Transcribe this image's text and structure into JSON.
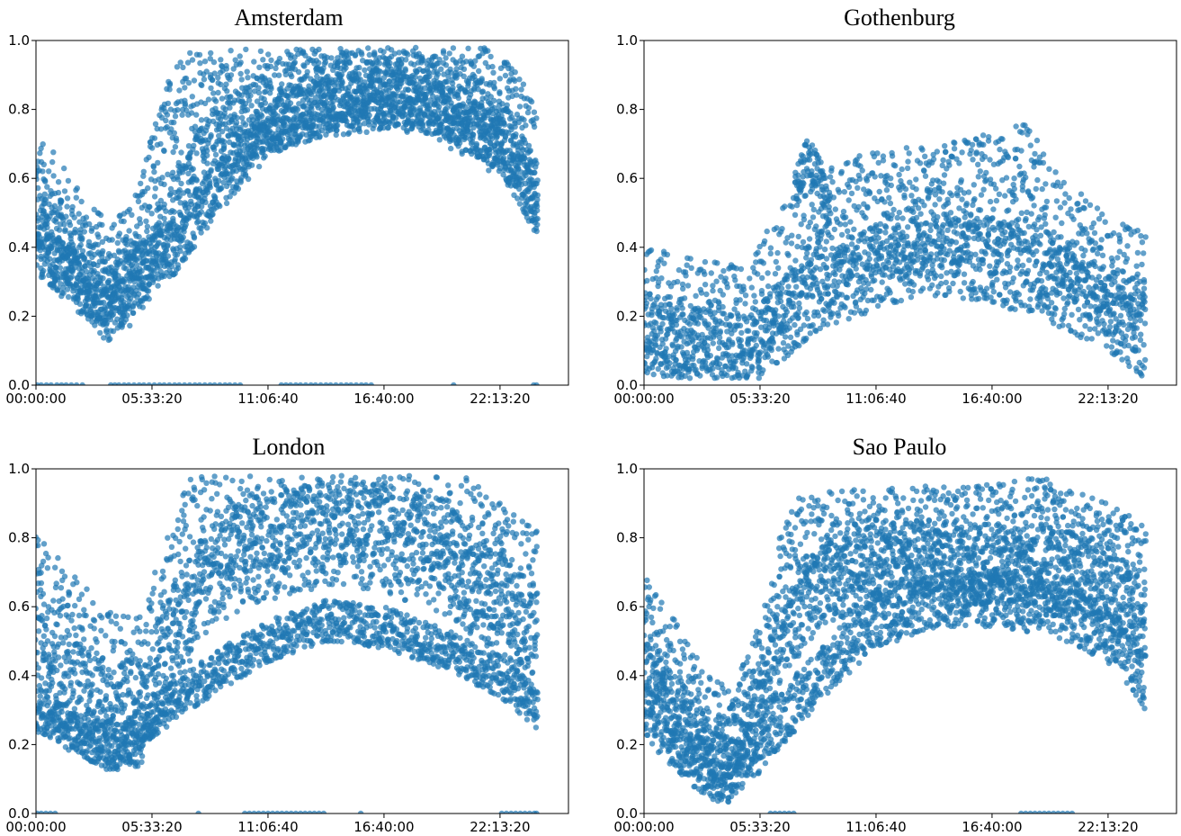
{
  "colors": {
    "point": "#1f77b4",
    "axis": "#000000",
    "background": "#ffffff"
  },
  "chart_data": [
    {
      "type": "scatter",
      "title": "Amsterdam",
      "xlim": [
        0,
        91800
      ],
      "ylim": [
        0,
        1.0
      ],
      "grid": false,
      "xticks": [
        "00:00:00",
        "05:33:20",
        "11:06:40",
        "16:40:00",
        "22:13:20"
      ],
      "yticks": [
        "0.0",
        "0.2",
        "0.4",
        "0.6",
        "0.8",
        "1.0"
      ],
      "profiles": [
        {
          "x": [
            0,
            4000,
            8000,
            12000,
            16000,
            20000,
            24000,
            30000,
            40000,
            50000,
            60000,
            66000,
            72000,
            78000,
            84000,
            86400
          ],
          "y": [
            0.55,
            0.48,
            0.38,
            0.3,
            0.34,
            0.55,
            0.78,
            0.86,
            0.88,
            0.9,
            0.92,
            0.94,
            0.86,
            0.8,
            0.72,
            0.6
          ],
          "spread": 0.18
        },
        {
          "x": [
            0,
            6000,
            12000,
            18000,
            24000,
            30000,
            40000,
            50000,
            60000,
            70000,
            80000,
            86400
          ],
          "y": [
            0.45,
            0.35,
            0.26,
            0.32,
            0.48,
            0.68,
            0.8,
            0.84,
            0.86,
            0.84,
            0.74,
            0.55
          ],
          "spread": 0.12
        },
        {
          "x": [
            0,
            12000,
            18000,
            24000,
            30000,
            40000,
            50000,
            60000,
            70000,
            80000,
            86400
          ],
          "y": [
            0.4,
            0.25,
            0.34,
            0.4,
            0.55,
            0.74,
            0.82,
            0.84,
            0.8,
            0.7,
            0.52
          ],
          "spread": 0.08
        }
      ],
      "zero_points_x": [
        200,
        900,
        1800,
        2600,
        3600,
        4400,
        5200,
        6100,
        7000,
        8000,
        12900,
        13600,
        14300,
        15200,
        16000,
        16900,
        17800,
        18600,
        19500,
        20400,
        21300,
        22100,
        23000,
        23900,
        24700,
        25600,
        26500,
        27400,
        28200,
        29100,
        30000,
        30800,
        31700,
        32600,
        33400,
        34300,
        35200,
        42300,
        43100,
        43900,
        44800,
        45600,
        46500,
        47400,
        48200,
        49100,
        50000,
        50800,
        51700,
        52600,
        53500,
        54300,
        55200,
        56100,
        56900,
        57800,
        72000,
        85800,
        86300
      ]
    },
    {
      "type": "scatter",
      "title": "Gothenburg",
      "xlim": [
        0,
        91800
      ],
      "ylim": [
        0,
        1.0
      ],
      "grid": false,
      "xticks": [
        "00:00:00",
        "05:33:20",
        "11:06:40",
        "16:40:00",
        "22:13:20"
      ],
      "yticks": [
        "0.0",
        "0.2",
        "0.4",
        "0.6",
        "0.8",
        "1.0"
      ],
      "profiles": [
        {
          "x": [
            0,
            6000,
            12000,
            18000,
            22000,
            30000,
            40000,
            50000,
            60000,
            66000,
            72000,
            80000,
            86400
          ],
          "y": [
            0.22,
            0.2,
            0.18,
            0.16,
            0.3,
            0.45,
            0.5,
            0.52,
            0.55,
            0.58,
            0.42,
            0.32,
            0.26
          ],
          "spread": 0.18
        },
        {
          "x": [
            0,
            6000,
            12000,
            18000,
            22000,
            30000,
            40000,
            50000,
            60000,
            70000,
            80000,
            86400
          ],
          "y": [
            0.15,
            0.12,
            0.1,
            0.08,
            0.16,
            0.28,
            0.34,
            0.38,
            0.36,
            0.3,
            0.22,
            0.14
          ],
          "spread": 0.12
        },
        {
          "x": [
            26000,
            28000,
            30000,
            32000
          ],
          "y": [
            0.55,
            0.66,
            0.62,
            0.5
          ],
          "spread": 0.06
        }
      ],
      "zero_points_x": []
    },
    {
      "type": "scatter",
      "title": "London",
      "xlim": [
        0,
        91800
      ],
      "ylim": [
        0,
        1.0
      ],
      "grid": false,
      "xticks": [
        "00:00:00",
        "05:33:20",
        "11:06:40",
        "16:40:00",
        "22:13:20"
      ],
      "yticks": [
        "0.0",
        "0.2",
        "0.4",
        "0.6",
        "0.8",
        "1.0"
      ],
      "profiles": [
        {
          "x": [
            0,
            6000,
            12000,
            18000,
            24000,
            30000,
            40000,
            50000,
            60000,
            66000,
            72000,
            80000,
            86400
          ],
          "y": [
            0.6,
            0.48,
            0.38,
            0.35,
            0.65,
            0.9,
            0.92,
            0.94,
            0.95,
            0.95,
            0.8,
            0.68,
            0.6
          ],
          "spread": 0.22
        },
        {
          "x": [
            0,
            6000,
            12000,
            18000,
            24000,
            30000,
            40000,
            50000,
            60000,
            70000,
            80000,
            86400
          ],
          "y": [
            0.45,
            0.35,
            0.28,
            0.3,
            0.52,
            0.7,
            0.78,
            0.82,
            0.8,
            0.74,
            0.62,
            0.48
          ],
          "spread": 0.16
        },
        {
          "x": [
            0,
            8000,
            14000,
            20000,
            30000,
            40000,
            50000,
            60000,
            70000,
            80000,
            86400
          ],
          "y": [
            0.3,
            0.22,
            0.18,
            0.28,
            0.4,
            0.5,
            0.56,
            0.54,
            0.48,
            0.4,
            0.3
          ],
          "spread": 0.06
        }
      ],
      "zero_points_x": [
        200,
        900,
        1700,
        2500,
        3300,
        28000,
        36000,
        36800,
        37600,
        38400,
        39200,
        40000,
        40800,
        41600,
        42400,
        43200,
        44000,
        44800,
        45600,
        46400,
        47200,
        48000,
        48800,
        49600,
        56000,
        80300,
        81100,
        81900,
        82700,
        83500,
        84300,
        85100,
        85900,
        86300
      ]
    },
    {
      "type": "scatter",
      "title": "Sao Paulo",
      "xlim": [
        0,
        91800
      ],
      "ylim": [
        0,
        1.0
      ],
      "grid": false,
      "xticks": [
        "00:00:00",
        "05:33:20",
        "11:06:40",
        "16:40:00",
        "22:13:20"
      ],
      "yticks": [
        "0.0",
        "0.2",
        "0.4",
        "0.6",
        "0.8",
        "1.0"
      ],
      "profiles": [
        {
          "x": [
            0,
            5000,
            10000,
            15000,
            20000,
            24000,
            28000,
            36000,
            46000,
            56000,
            62000,
            68000,
            74000,
            80000,
            86400
          ],
          "y": [
            0.55,
            0.42,
            0.26,
            0.2,
            0.4,
            0.7,
            0.78,
            0.78,
            0.79,
            0.79,
            0.8,
            0.82,
            0.78,
            0.74,
            0.68
          ],
          "spread": 0.16
        },
        {
          "x": [
            0,
            6000,
            12000,
            18000,
            24000,
            30000,
            40000,
            50000,
            60000,
            70000,
            80000,
            86400
          ],
          "y": [
            0.4,
            0.28,
            0.16,
            0.24,
            0.5,
            0.66,
            0.72,
            0.74,
            0.72,
            0.72,
            0.66,
            0.55
          ],
          "spread": 0.12
        },
        {
          "x": [
            0,
            8000,
            14000,
            20000,
            30000,
            40000,
            50000,
            60000,
            70000,
            80000,
            86400
          ],
          "y": [
            0.3,
            0.16,
            0.1,
            0.2,
            0.4,
            0.56,
            0.62,
            0.62,
            0.6,
            0.52,
            0.38
          ],
          "spread": 0.08
        }
      ],
      "zero_points_x": [
        21800,
        22600,
        23400,
        24200,
        25000,
        25800,
        65000,
        65800,
        66600,
        67400,
        68200,
        69000,
        69800,
        70600,
        71400,
        72200,
        73000,
        73800
      ]
    }
  ]
}
